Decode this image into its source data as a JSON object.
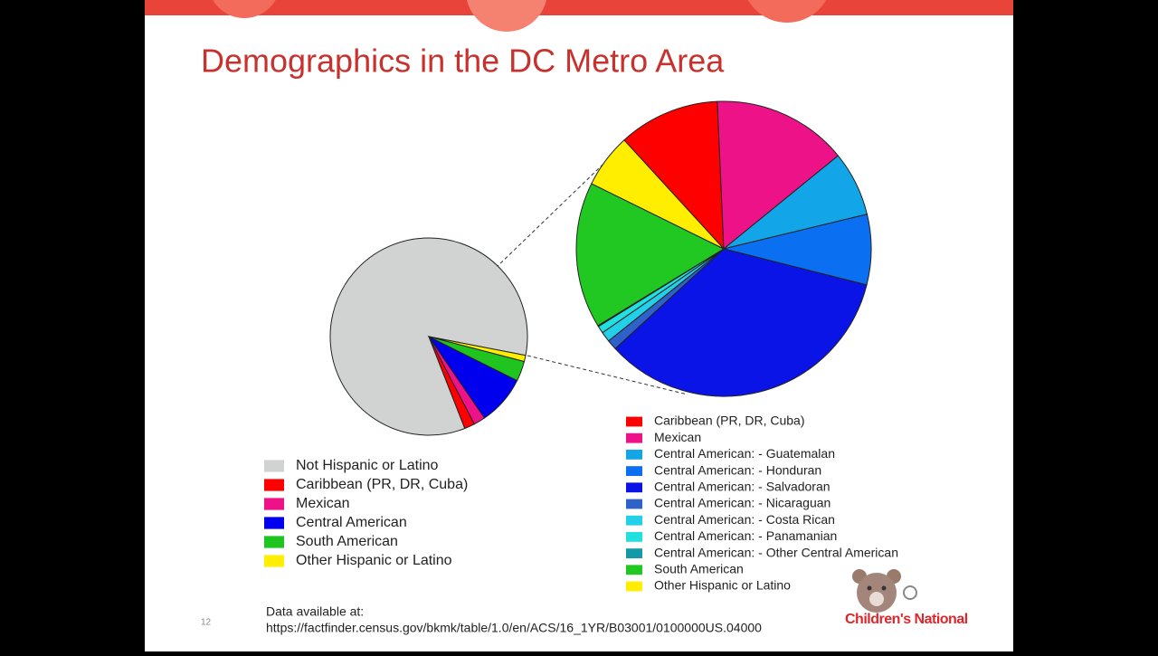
{
  "title": "Demographics in the DC Metro Area",
  "chart_data": [
    {
      "type": "pie",
      "categories": [
        "Not Hispanic or Latino",
        "Caribbean (PR, DR, Cuba)",
        "Mexican",
        "Central American",
        "South American",
        "Other Hispanic or Latino"
      ],
      "values": [
        84,
        1.7,
        1.9,
        8.1,
        3.3,
        1.0
      ],
      "colors": [
        "#d0d3d2",
        "#ff0000",
        "#ee1289",
        "#0000ee",
        "#1fc41f",
        "#ffee00"
      ]
    },
    {
      "type": "pie",
      "categories": [
        "Caribbean (PR, DR, Cuba)",
        "Mexican",
        "Central American: - Guatemalan",
        "Central American: - Honduran",
        "Central American: - Salvadoran",
        "Central American: - Nicaraguan",
        "Central American: - Costa Rican",
        "Central American: - Panamanian",
        "Central American: - Other Central American",
        "South American",
        "Other Hispanic or Latino"
      ],
      "values": [
        11.1,
        14.8,
        7.1,
        7.7,
        34.2,
        1.1,
        1.1,
        0.8,
        0.1,
        16.0,
        5.9
      ],
      "colors": [
        "#ff0000",
        "#ee1289",
        "#12a6e8",
        "#0a6ff0",
        "#0a14e6",
        "#2e62c8",
        "#22d0e8",
        "#20e0e0",
        "#129aa8",
        "#22c822",
        "#ffee00"
      ]
    }
  ],
  "footer": {
    "source_label": "Data available at:",
    "source_url": "https://factfinder.census.gov/bkmk/table/1.0/en/ACS/16_1YR/B03001/0100000US.04000",
    "page_number": "12",
    "logo": "Children's National"
  }
}
